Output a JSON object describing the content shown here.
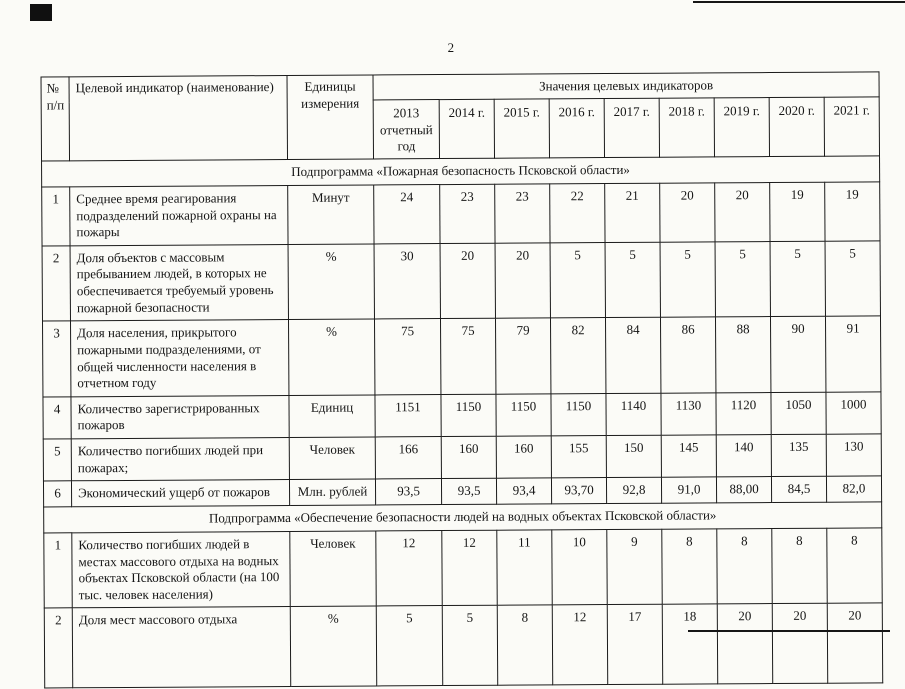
{
  "page": {
    "number": "2"
  },
  "colors": {
    "paper": "#fbfbf7",
    "ink": "#151515"
  },
  "table": {
    "header": {
      "num": "№ п/п",
      "indicator": "Целевой индикатор (наименование)",
      "units": "Единицы измерения",
      "values_group": "Значения целевых индикаторов",
      "years": [
        "2013 отчетный год",
        "2014 г.",
        "2015 г.",
        "2016 г.",
        "2017 г.",
        "2018 г.",
        "2019 г.",
        "2020 г.",
        "2021 г."
      ]
    },
    "sections": [
      {
        "title": "Подпрограмма «Пожарная безопасность Псковской области»",
        "rows": [
          {
            "num": "1",
            "indicator": "Среднее время реагирования подразделений пожарной охраны на пожары",
            "units": "Минут",
            "values": [
              "24",
              "23",
              "23",
              "22",
              "21",
              "20",
              "20",
              "19",
              "19"
            ]
          },
          {
            "num": "2",
            "indicator": "Доля объектов с массовым пребыванием людей, в которых не обеспечивается требуемый уровень пожарной безопасности",
            "units": "%",
            "values": [
              "30",
              "20",
              "20",
              "5",
              "5",
              "5",
              "5",
              "5",
              "5"
            ]
          },
          {
            "num": "3",
            "indicator": "Доля населения, прикрытого пожарными подразделениями, от общей численности населения в отчетном году",
            "units": "%",
            "values": [
              "75",
              "75",
              "79",
              "82",
              "84",
              "86",
              "88",
              "90",
              "91"
            ]
          },
          {
            "num": "4",
            "indicator": "Количество зарегистрированных пожаров",
            "units": "Единиц",
            "values": [
              "1151",
              "1150",
              "1150",
              "1150",
              "1140",
              "1130",
              "1120",
              "1050",
              "1000"
            ]
          },
          {
            "num": "5",
            "indicator": "Количество погибших людей при пожарах;",
            "units": "Человек",
            "values": [
              "166",
              "160",
              "160",
              "155",
              "150",
              "145",
              "140",
              "135",
              "130"
            ]
          },
          {
            "num": "6",
            "indicator": "Экономический ущерб от пожаров",
            "units": "Млн. рублей",
            "values": [
              "93,5",
              "93,5",
              "93,4",
              "93,70",
              "92,8",
              "91,0",
              "88,00",
              "84,5",
              "82,0"
            ]
          }
        ]
      },
      {
        "title": "Подпрограмма «Обеспечение безопасности людей на водных объектах Псковской области»",
        "rows": [
          {
            "num": "1",
            "indicator": "Количество погибших людей в местах массового отдыха на водных объектах Псковской области (на 100 тыс. человек населения)",
            "units": "Человек",
            "values": [
              "12",
              "12",
              "11",
              "10",
              "9",
              "8",
              "8",
              "8",
              "8"
            ]
          },
          {
            "num": "2",
            "indicator": "Доля мест массового отдыха",
            "units": "%",
            "values": [
              "5",
              "5",
              "8",
              "12",
              "17",
              "18",
              "20",
              "20",
              "20"
            ]
          }
        ]
      }
    ]
  }
}
